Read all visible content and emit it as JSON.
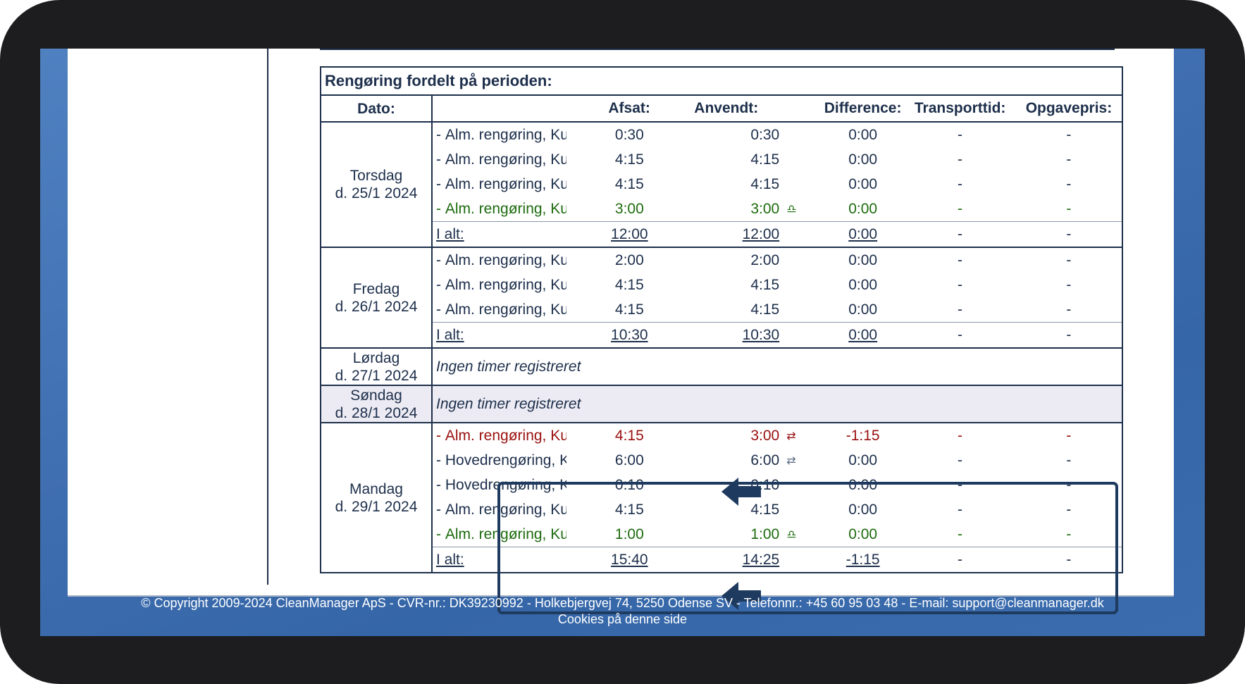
{
  "table": {
    "caption": "Rengøring fordelt på perioden:",
    "headers": {
      "date": "Dato:",
      "afsat": "Afsat:",
      "anvendt": "Anvendt:",
      "difference": "Difference:",
      "transport": "Transporttid:",
      "pris": "Opgavepris:"
    },
    "days": [
      {
        "day": "Torsdag",
        "date": "d. 25/1 2024",
        "rows": [
          {
            "dash": "-",
            "task": "Alm. rengøring, Ku",
            "afsat": "0:30",
            "anvendt": "0:30",
            "icon": "",
            "diff": "0:00",
            "transport": "-",
            "pris": "-"
          },
          {
            "dash": "-",
            "task": "Alm. rengøring, Ku",
            "afsat": "4:15",
            "anvendt": "4:15",
            "icon": "",
            "diff": "0:00",
            "transport": "-",
            "pris": "-"
          },
          {
            "dash": "-",
            "task": "Alm. rengøring, Ku",
            "afsat": "4:15",
            "anvendt": "4:15",
            "icon": "",
            "diff": "0:00",
            "transport": "-",
            "pris": "-"
          },
          {
            "dash": "-",
            "task": "Alm. rengøring, Ku",
            "afsat": "3:00",
            "anvendt": "3:00",
            "icon": "♎",
            "diff": "0:00",
            "transport": "-",
            "pris": "-"
          }
        ],
        "total": {
          "label": "I alt:",
          "afsat": "12:00",
          "anvendt": "12:00",
          "diff": "0:00",
          "transport": "-",
          "pris": "-"
        }
      },
      {
        "day": "Fredag",
        "date": "d. 26/1 2024",
        "rows": [
          {
            "dash": "-",
            "task": "Alm. rengøring, Ku",
            "afsat": "2:00",
            "anvendt": "2:00",
            "icon": "",
            "diff": "0:00",
            "transport": "-",
            "pris": "-"
          },
          {
            "dash": "-",
            "task": "Alm. rengøring, Ku",
            "afsat": "4:15",
            "anvendt": "4:15",
            "icon": "",
            "diff": "0:00",
            "transport": "-",
            "pris": "-"
          },
          {
            "dash": "-",
            "task": "Alm. rengøring, Ku",
            "afsat": "4:15",
            "anvendt": "4:15",
            "icon": "",
            "diff": "0:00",
            "transport": "-",
            "pris": "-"
          }
        ],
        "total": {
          "label": "I alt:",
          "afsat": "10:30",
          "anvendt": "10:30",
          "diff": "0:00",
          "transport": "-",
          "pris": "-"
        }
      },
      {
        "day": "Lørdag",
        "date": "d. 27/1 2024",
        "empty": "Ingen timer registreret"
      },
      {
        "day": "Søndag",
        "date": "d. 28/1 2024",
        "empty": "Ingen timer registreret"
      },
      {
        "day": "Mandag",
        "date": "d. 29/1 2024",
        "rows": [
          {
            "dash": "-",
            "task": "Alm. rengøring, Ku",
            "afsat": "4:15",
            "anvendt": "3:00",
            "icon": "⇄",
            "diff": "-1:15",
            "transport": "-",
            "pris": "-"
          },
          {
            "dash": "-",
            "task": "Hovedrengøring, K",
            "afsat": "6:00",
            "anvendt": "6:00",
            "icon": "⇄",
            "diff": "0:00",
            "transport": "-",
            "pris": "-"
          },
          {
            "dash": "-",
            "task": "Hovedrengøring, K",
            "afsat": "0:10",
            "anvendt": "0:10",
            "icon": "",
            "diff": "0:00",
            "transport": "-",
            "pris": "-"
          },
          {
            "dash": "-",
            "task": "Alm. rengøring, Ku",
            "afsat": "4:15",
            "anvendt": "4:15",
            "icon": "",
            "diff": "0:00",
            "transport": "-",
            "pris": "-"
          },
          {
            "dash": "-",
            "task": "Alm. rengøring, Ku",
            "afsat": "1:00",
            "anvendt": "1:00",
            "icon": "♎",
            "diff": "0:00",
            "transport": "-",
            "pris": "-"
          }
        ],
        "total": {
          "label": "I alt:",
          "afsat": "15:40",
          "anvendt": "14:25",
          "diff": "-1:15",
          "transport": "-",
          "pris": "-"
        }
      }
    ]
  },
  "footer": {
    "copyright": "© Copyright 2009-2024 CleanManager ApS - CVR-nr.: DK39230992 - Holkebjergvej 74, 5250 Odense SV - Telefonnr.: +45 60 95 03 48 - E-mail: support@cleanmanager.dk",
    "cookies": "Cookies på denne side"
  },
  "colors": {
    "text": "#1d2f4b",
    "green": "#1d6b0e",
    "red": "#9a1010",
    "annotation": "#1f3a5f"
  }
}
